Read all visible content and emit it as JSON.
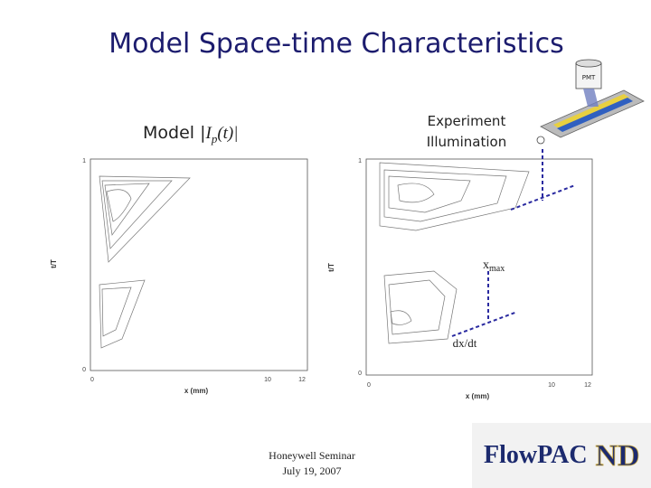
{
  "title": "Model Space-time Characteristics",
  "model_label": {
    "prefix": "Model |",
    "symbol": "I",
    "subscript": "p",
    "suffix": "(t)|"
  },
  "experiment_label": [
    "Experiment",
    "Illumination"
  ],
  "left_plot": {
    "y_label": "t/T",
    "x_label": "x (mm)",
    "y_ticks": [
      "1",
      "0"
    ],
    "x_ticks": [
      "0",
      "10",
      "12"
    ]
  },
  "right_plot": {
    "y_label": "t/T",
    "x_label": "x (mm)",
    "y_ticks": [
      "1",
      "0"
    ],
    "x_ticks": [
      "0",
      "10",
      "12"
    ]
  },
  "annotations": {
    "xmax": {
      "base": "x",
      "subscript": "max"
    },
    "rate": "dx/dt"
  },
  "footer": [
    "Honeywell Seminar",
    "July 19, 2007"
  ],
  "logo": {
    "text": "FlowPAC",
    "mark": "ND"
  },
  "apparatus_label": "PMT"
}
